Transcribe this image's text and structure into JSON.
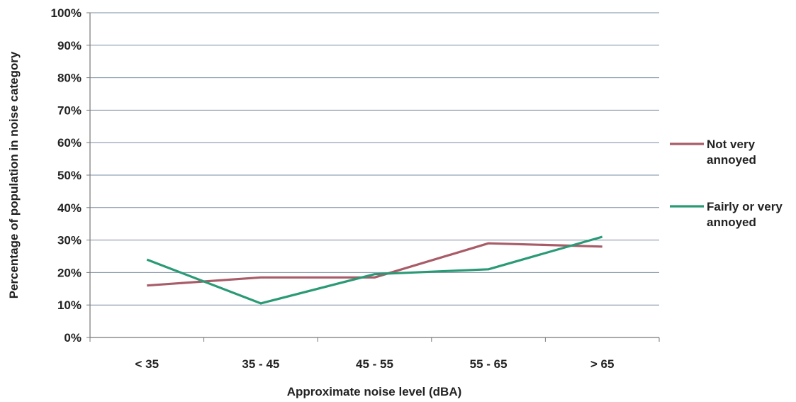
{
  "chart_data": {
    "type": "line",
    "categories": [
      "< 35",
      "35 - 45",
      "45 - 55",
      "55 - 65",
      "> 65"
    ],
    "series": [
      {
        "name_lines": [
          "Not very",
          "annoyed"
        ],
        "color": "#a85c68",
        "values": [
          16,
          18.5,
          18.5,
          29,
          28
        ]
      },
      {
        "name_lines": [
          "Fairly or very",
          "annoyed"
        ],
        "color": "#2a9a76",
        "values": [
          24,
          10.5,
          19.5,
          21,
          31
        ]
      }
    ],
    "xlabel": "Approximate noise level (dBA)",
    "ylabel": "Percentage of population in noise category",
    "ylim": [
      0,
      100
    ],
    "yticks": [
      "0%",
      "10%",
      "20%",
      "30%",
      "40%",
      "50%",
      "60%",
      "70%",
      "80%",
      "90%",
      "100%"
    ],
    "grid": true,
    "legend_position": "right"
  }
}
